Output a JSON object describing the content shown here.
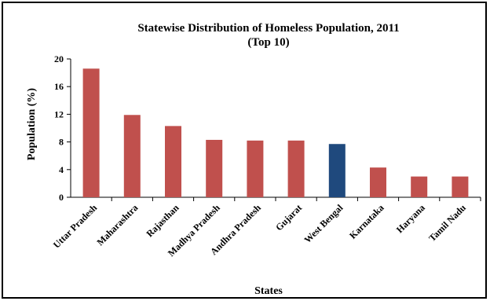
{
  "chart_data": {
    "type": "bar",
    "title": "Statewise Distribution  of Homeless Population, 2011",
    "subtitle": "(Top 10)",
    "xlabel": "States",
    "ylabel": "Population  (%)",
    "ylim": [
      0,
      20
    ],
    "yticks": [
      "0",
      "4",
      "8",
      "12",
      "16",
      "20"
    ],
    "categories": [
      "Uttar Pradesh",
      "Maharashtra",
      "Rajasthan",
      "Madhya Pradesh",
      "Andhra Pradesh",
      "Gujarat",
      "West Bengal",
      "Karnataka",
      "Haryana",
      "Tamil Nadu"
    ],
    "values": [
      18.6,
      11.9,
      10.3,
      8.3,
      8.2,
      8.2,
      7.7,
      4.3,
      3.0,
      3.0
    ],
    "bar_color": "#C0504D",
    "highlight_color": "#1F497D",
    "highlight_category": "West Bengal",
    "grid": false,
    "legend": "none"
  }
}
